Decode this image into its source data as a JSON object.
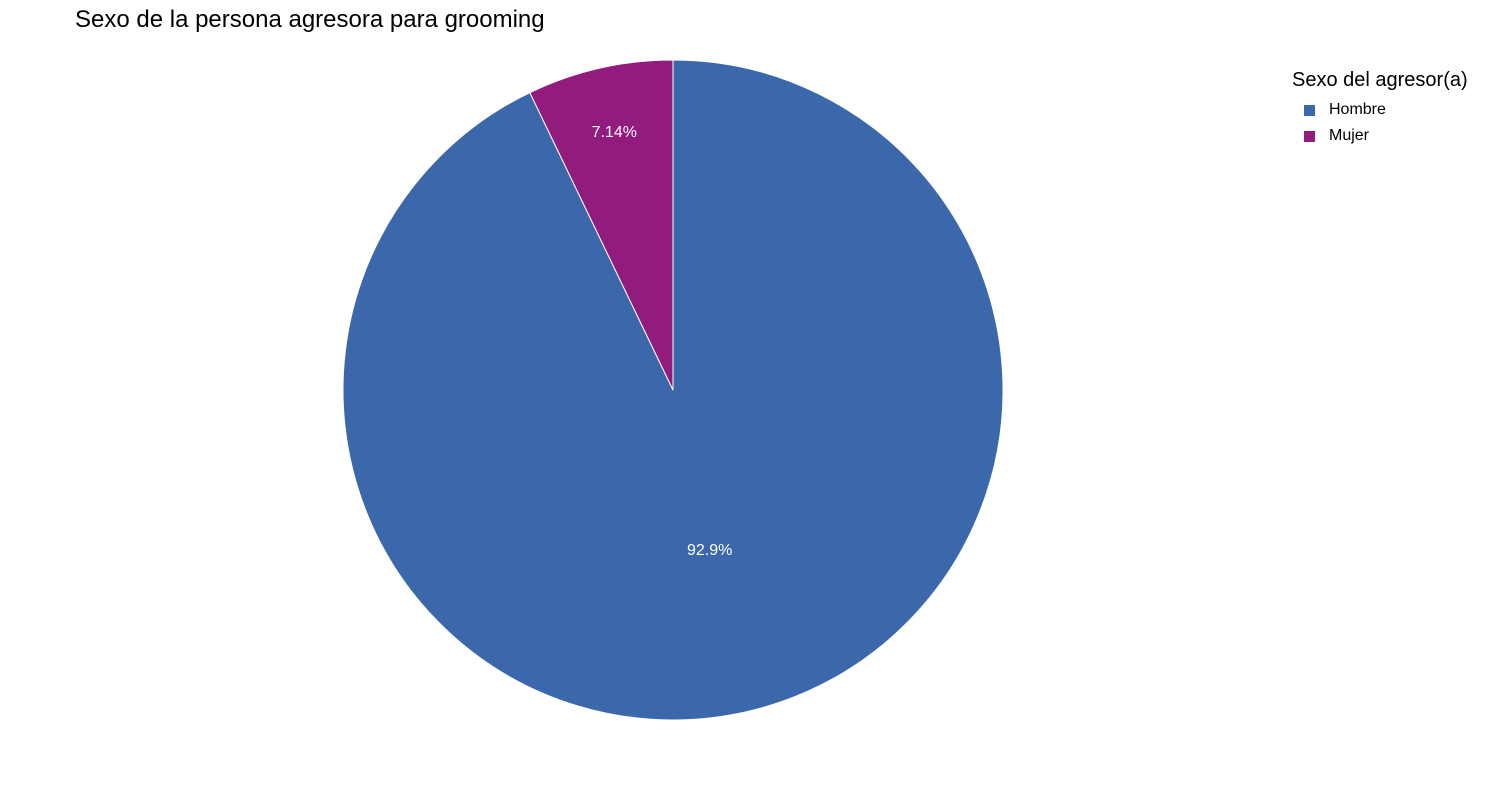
{
  "chart_data": {
    "type": "pie",
    "title": "Sexo de la persona agresora para grooming",
    "legend_title": "Sexo del agresor(a)",
    "legend_position": "top-right",
    "slices": [
      {
        "name": "Hombre",
        "value": 92.86,
        "label": "92.9%",
        "color": "#3a68ab"
      },
      {
        "name": "Mujer",
        "value": 7.14,
        "label": "7.14%",
        "color": "#921b7e"
      }
    ]
  }
}
